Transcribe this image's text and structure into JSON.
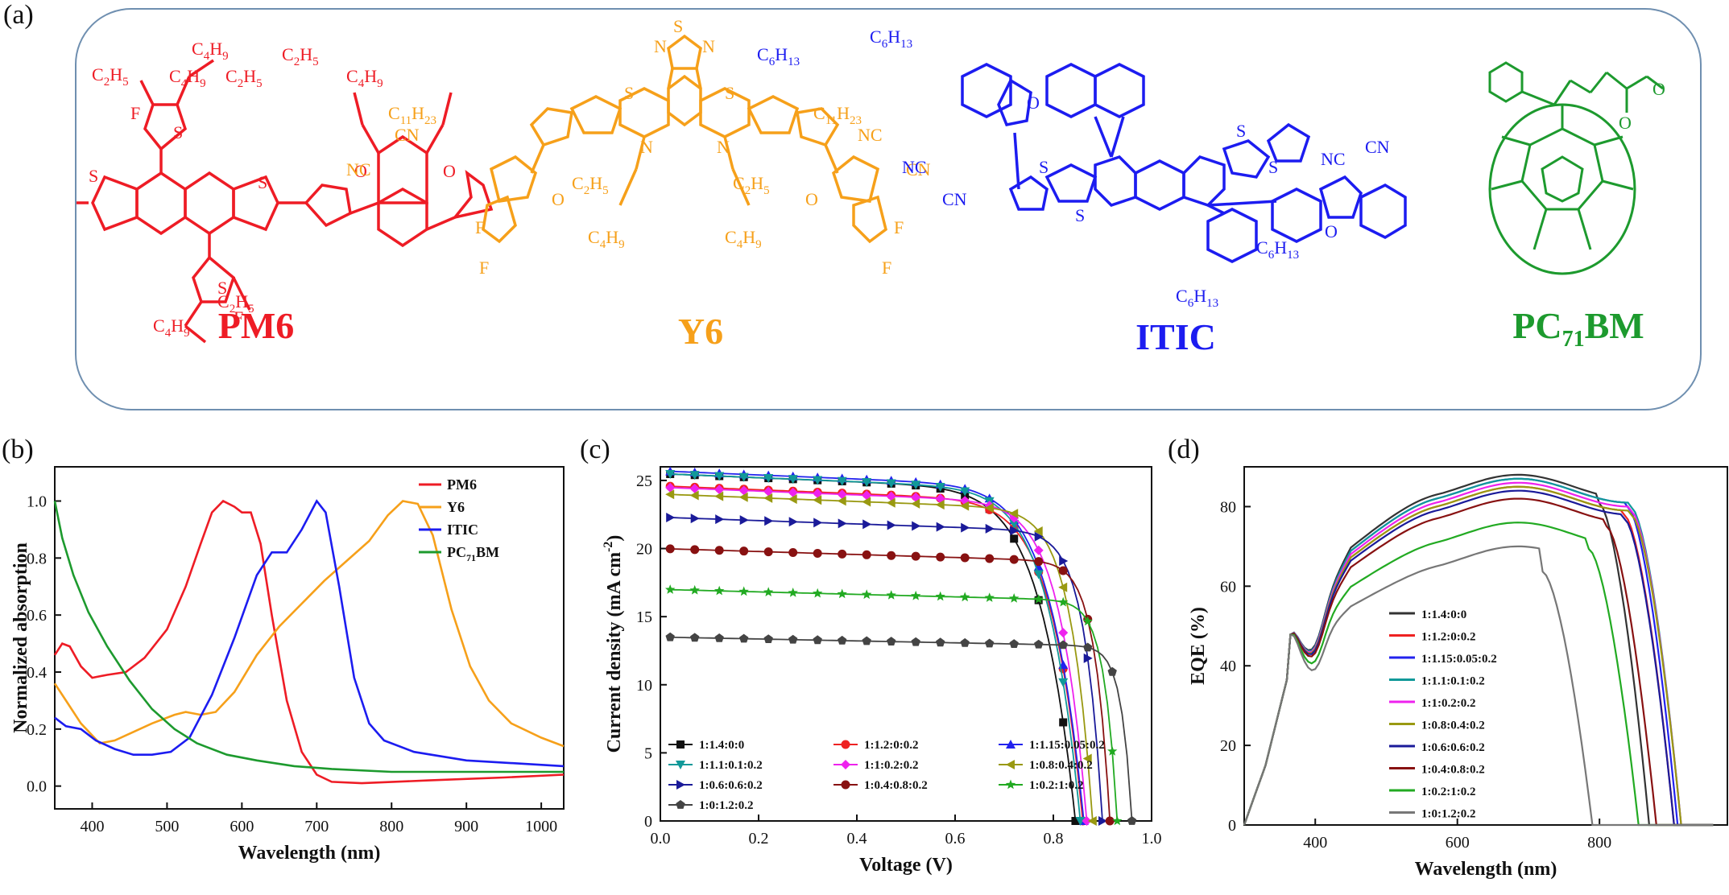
{
  "panel_letters": {
    "a": "(a)",
    "b": "(b)",
    "c": "(c)",
    "d": "(d)"
  },
  "molecules": [
    {
      "name": "PM6",
      "color": "#ee1c25"
    },
    {
      "name": "Y6",
      "color": "#f6a01a"
    },
    {
      "name": "ITIC",
      "color": "#1c1cf0"
    },
    {
      "name": "PC71BM",
      "color": "#1d9a2e",
      "base": "PC",
      "sub": "71",
      "suffix": "BM"
    }
  ],
  "chart_data": [
    {
      "type": "line",
      "id": "b",
      "xlabel": "Wavelength (nm)",
      "ylabel": "Normalized absorption",
      "xlim": [
        350,
        1030
      ],
      "ylim": [
        -0.08,
        1.12
      ],
      "xticks": [
        400,
        500,
        600,
        700,
        800,
        900,
        1000
      ],
      "yticks": [
        0.0,
        0.2,
        0.4,
        0.6,
        0.8,
        1.0
      ],
      "ytick_labels": [
        "0.0",
        "0.2",
        "0.4",
        "0.6",
        "0.8",
        "1.0"
      ],
      "legend_position": "top-right",
      "series": [
        {
          "name": "PM6",
          "color": "#ee1c25",
          "points": [
            [
              350,
              0.46
            ],
            [
              360,
              0.5
            ],
            [
              370,
              0.49
            ],
            [
              385,
              0.42
            ],
            [
              400,
              0.38
            ],
            [
              420,
              0.39
            ],
            [
              445,
              0.4
            ],
            [
              470,
              0.45
            ],
            [
              500,
              0.55
            ],
            [
              525,
              0.7
            ],
            [
              545,
              0.85
            ],
            [
              560,
              0.96
            ],
            [
              575,
              1.0
            ],
            [
              590,
              0.98
            ],
            [
              600,
              0.96
            ],
            [
              612,
              0.96
            ],
            [
              625,
              0.85
            ],
            [
              640,
              0.6
            ],
            [
              660,
              0.3
            ],
            [
              680,
              0.12
            ],
            [
              700,
              0.04
            ],
            [
              720,
              0.015
            ],
            [
              760,
              0.01
            ],
            [
              850,
              0.02
            ],
            [
              950,
              0.03
            ],
            [
              1030,
              0.04
            ]
          ]
        },
        {
          "name": "Y6",
          "color": "#f6a01a",
          "points": [
            [
              350,
              0.36
            ],
            [
              365,
              0.3
            ],
            [
              385,
              0.22
            ],
            [
              410,
              0.15
            ],
            [
              430,
              0.16
            ],
            [
              455,
              0.19
            ],
            [
              480,
              0.22
            ],
            [
              510,
              0.25
            ],
            [
              525,
              0.26
            ],
            [
              545,
              0.25
            ],
            [
              565,
              0.26
            ],
            [
              590,
              0.33
            ],
            [
              620,
              0.46
            ],
            [
              650,
              0.56
            ],
            [
              680,
              0.64
            ],
            [
              710,
              0.72
            ],
            [
              740,
              0.79
            ],
            [
              770,
              0.86
            ],
            [
              795,
              0.95
            ],
            [
              815,
              1.0
            ],
            [
              835,
              0.99
            ],
            [
              855,
              0.88
            ],
            [
              880,
              0.62
            ],
            [
              905,
              0.42
            ],
            [
              930,
              0.3
            ],
            [
              960,
              0.22
            ],
            [
              1000,
              0.17
            ],
            [
              1030,
              0.14
            ]
          ]
        },
        {
          "name": "ITIC",
          "color": "#1c1cf0",
          "points": [
            [
              350,
              0.24
            ],
            [
              365,
              0.21
            ],
            [
              385,
              0.2
            ],
            [
              405,
              0.16
            ],
            [
              430,
              0.13
            ],
            [
              455,
              0.11
            ],
            [
              480,
              0.11
            ],
            [
              505,
              0.12
            ],
            [
              530,
              0.17
            ],
            [
              560,
              0.32
            ],
            [
              590,
              0.52
            ],
            [
              620,
              0.74
            ],
            [
              640,
              0.82
            ],
            [
              660,
              0.82
            ],
            [
              680,
              0.9
            ],
            [
              700,
              1.0
            ],
            [
              712,
              0.96
            ],
            [
              730,
              0.7
            ],
            [
              750,
              0.38
            ],
            [
              770,
              0.22
            ],
            [
              790,
              0.16
            ],
            [
              830,
              0.12
            ],
            [
              900,
              0.09
            ],
            [
              1030,
              0.07
            ]
          ]
        },
        {
          "name": "PC71BM",
          "color": "#1d9a2e",
          "points": [
            [
              350,
              1.0
            ],
            [
              360,
              0.87
            ],
            [
              375,
              0.74
            ],
            [
              395,
              0.61
            ],
            [
              420,
              0.49
            ],
            [
              450,
              0.37
            ],
            [
              480,
              0.27
            ],
            [
              510,
              0.2
            ],
            [
              540,
              0.15
            ],
            [
              580,
              0.11
            ],
            [
              620,
              0.09
            ],
            [
              670,
              0.07
            ],
            [
              720,
              0.06
            ],
            [
              800,
              0.05
            ],
            [
              900,
              0.05
            ],
            [
              1030,
              0.05
            ]
          ]
        }
      ]
    },
    {
      "type": "line",
      "id": "c",
      "xlabel": "Voltage (V)",
      "ylabel": "Current density (mA cm",
      "ylabel_sup": "-2",
      "ylabel_end": ")",
      "xlim": [
        0.0,
        1.0
      ],
      "ylim": [
        0,
        26
      ],
      "xticks": [
        0.0,
        0.2,
        0.4,
        0.6,
        0.8,
        1.0
      ],
      "xtick_labels": [
        "0.0",
        "0.2",
        "0.4",
        "0.6",
        "0.8",
        "1.0"
      ],
      "yticks": [
        0,
        5,
        10,
        15,
        20,
        25
      ],
      "legend_position": "bottom",
      "series": [
        {
          "name": "1:1.4:0:0",
          "color": "#111111",
          "marker": "square",
          "jsc": 25.5,
          "voc": 0.845,
          "knee": 0.78
        },
        {
          "name": "1:1.2:0:0.2",
          "color": "#ee2222",
          "marker": "circle",
          "jsc": 24.6,
          "voc": 0.86,
          "knee": 0.78
        },
        {
          "name": "1:1.15:0.05:0.2",
          "color": "#2222ee",
          "marker": "triangle-up",
          "jsc": 25.7,
          "voc": 0.862,
          "knee": 0.79
        },
        {
          "name": "1:1.1:0.1:0.2",
          "color": "#119999",
          "marker": "triangle-down",
          "jsc": 25.5,
          "voc": 0.855,
          "knee": 0.78
        },
        {
          "name": "1:1:0.2:0.2",
          "color": "#ee22ee",
          "marker": "diamond",
          "jsc": 24.5,
          "voc": 0.868,
          "knee": 0.77
        },
        {
          "name": "1:0.8:0.4:0.2",
          "color": "#999911",
          "marker": "triangle-left",
          "jsc": 24.0,
          "voc": 0.88,
          "knee": 0.75
        },
        {
          "name": "1:0.6:0.6:0.2",
          "color": "#1a1a99",
          "marker": "triangle-right",
          "jsc": 22.3,
          "voc": 0.9,
          "knee": 0.73
        },
        {
          "name": "1:0.4:0.8:0.2",
          "color": "#881111",
          "marker": "circle",
          "jsc": 20.0,
          "voc": 0.915,
          "knee": 0.7
        },
        {
          "name": "1:0.2:1:0.2",
          "color": "#22aa22",
          "marker": "star",
          "jsc": 17.0,
          "voc": 0.93,
          "knee": 0.67
        },
        {
          "name": "1:0:1.2:0.2",
          "color": "#444444",
          "marker": "pentagon",
          "jsc": 13.5,
          "voc": 0.96,
          "knee": 0.62
        }
      ]
    },
    {
      "type": "line",
      "id": "d",
      "xlabel": "Wavelength (nm)",
      "ylabel": "EQE (%)",
      "xlim": [
        300,
        980
      ],
      "ylim": [
        0,
        90
      ],
      "xticks": [
        400,
        600,
        800
      ],
      "yticks": [
        0,
        20,
        40,
        60,
        80
      ],
      "legend_position": "center-right",
      "series": [
        {
          "name": "1:1.4:0:0",
          "color": "#333333",
          "peak": 85,
          "cut": 870
        },
        {
          "name": "1:1.2:0:0.2",
          "color": "#ee2222",
          "peak": 82,
          "cut": 905
        },
        {
          "name": "1:1.15:0.05:0.2",
          "color": "#2222ee",
          "peak": 84,
          "cut": 910
        },
        {
          "name": "1:1.1:0.1:0.2",
          "color": "#119999",
          "peak": 84,
          "cut": 915
        },
        {
          "name": "1:1:0.2:0.2",
          "color": "#ee22ee",
          "peak": 83,
          "cut": 915
        },
        {
          "name": "1:0.8:0.4:0.2",
          "color": "#999911",
          "peak": 82,
          "cut": 915
        },
        {
          "name": "1:0.6:0.6:0.2",
          "color": "#1a1a99",
          "peak": 81,
          "cut": 905
        },
        {
          "name": "1:0.4:0.8:0.2",
          "color": "#881111",
          "peak": 79,
          "cut": 880
        },
        {
          "name": "1:0.2:1:0.2",
          "color": "#22aa22",
          "peak": 73,
          "cut": 855
        },
        {
          "name": "1:0:1.2:0.2",
          "color": "#777777",
          "peak": 67,
          "cut": 790
        }
      ]
    }
  ]
}
